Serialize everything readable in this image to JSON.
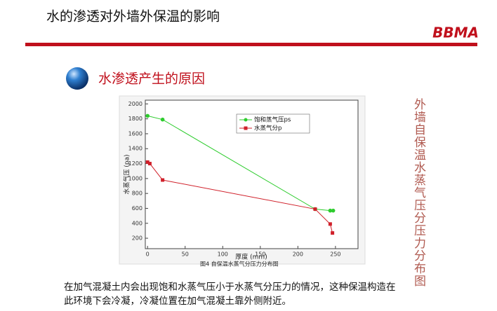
{
  "header": {
    "title": "水的渗透对外墙外保温的影响",
    "logo": "BBMA"
  },
  "section_heading": "水渗透产生的原因",
  "side_text": "外墙自保温水蒸气压分压力分布图",
  "paragraph": [
    "在加气混凝土内会出现饱和水蒸气压小于水蒸气分压力的情况，这种保温构造在",
    "此环境下会冷凝，冷凝位置在加气混凝土靠外侧附近。"
  ],
  "chart_data": {
    "type": "line",
    "caption": "图4  自保温水蒸气分压力分布图",
    "x_label": "厚度 (mm)",
    "y_label": "水蒸气压 (pa)",
    "xlim": [
      -3,
      280
    ],
    "ylim": [
      60,
      2050
    ],
    "xticks": [
      0,
      50,
      100,
      150,
      200,
      250
    ],
    "yticks": [
      200,
      400,
      600,
      800,
      1000,
      1200,
      1400,
      1600,
      1800,
      2000
    ],
    "series": [
      {
        "name": "饱和蒸气压ps",
        "color": "#2ecc2e",
        "marker": "circle",
        "x": [
          0,
          20,
          223,
          243,
          247
        ],
        "values": [
          1840,
          1790,
          590,
          570,
          570
        ]
      },
      {
        "name": "水蒸气分p",
        "color": "#d0202a",
        "marker": "square",
        "x": [
          0,
          3,
          20,
          223,
          243,
          246
        ],
        "values": [
          1220,
          1200,
          980,
          590,
          390,
          270
        ]
      }
    ]
  }
}
